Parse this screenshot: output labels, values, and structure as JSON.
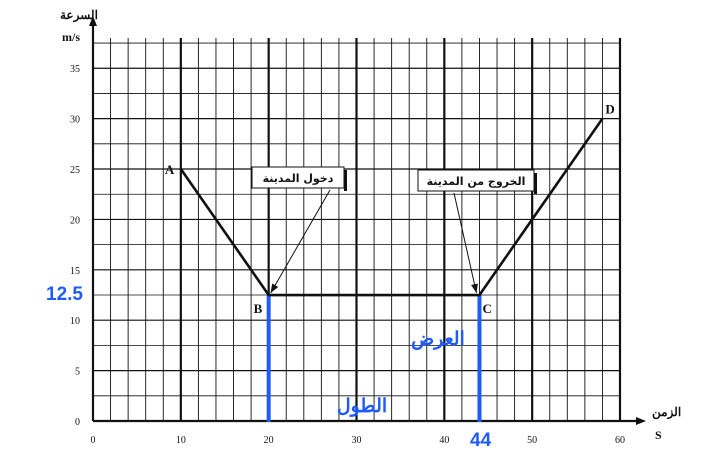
{
  "chart_data": {
    "type": "line",
    "ylabel": "السرعة",
    "yunit": "m/s",
    "xlabel": "الزمن",
    "xunit": "S",
    "xlim": [
      0,
      60
    ],
    "ylim": [
      0,
      38
    ],
    "grid": true,
    "x_ticks": [
      0,
      10,
      20,
      30,
      40,
      50,
      60
    ],
    "y_ticks": [
      0,
      5,
      10,
      15,
      20,
      25,
      30,
      35
    ],
    "series": [
      {
        "x": [
          10,
          20,
          44,
          58
        ],
        "y": [
          25,
          12.5,
          12.5,
          30
        ],
        "point_labels": [
          "A",
          "B",
          "C",
          "D"
        ]
      }
    ],
    "annotations": [
      {
        "text": "دخول المدينة",
        "points_to": [
          20,
          12.5
        ]
      },
      {
        "text": "الخروج من المدينة",
        "points_to": [
          44,
          12.5
        ]
      }
    ],
    "highlight": {
      "color": "#1e5bff",
      "y_value_label": "12.5",
      "x_value_label": "44",
      "vertical_lines_at": [
        20,
        44
      ],
      "length_label": "الطول",
      "width_label": "العرض"
    }
  }
}
